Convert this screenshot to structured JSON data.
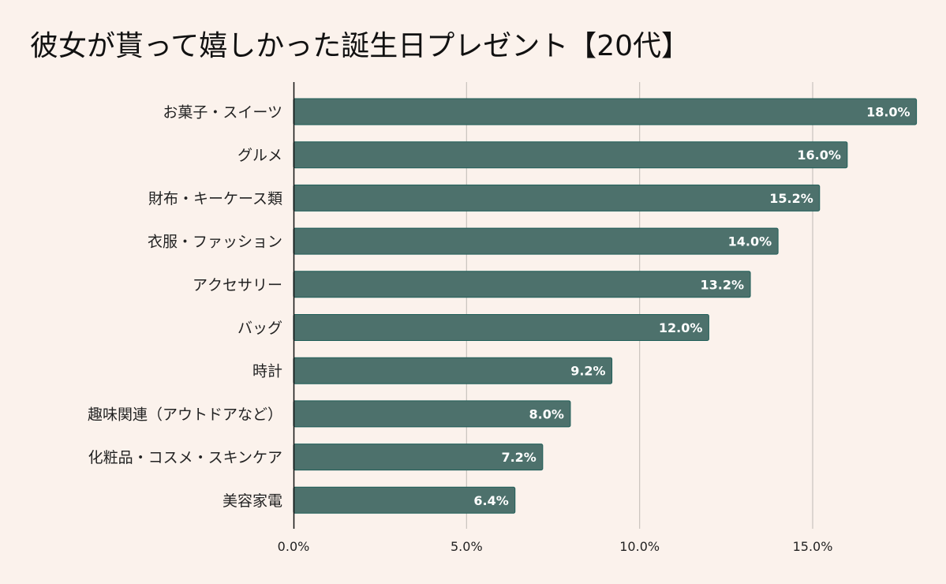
{
  "chart_data": {
    "type": "bar",
    "orientation": "horizontal",
    "title": "彼女が貰って嬉しかった誕生日プレゼント【20代】",
    "categories": [
      "お菓子・スイーツ",
      "グルメ",
      "財布・キーケース類",
      "衣服・ファッション",
      "アクセサリー",
      "バッグ",
      "時計",
      "趣味関連（アウトドアなど）",
      "化粧品・コスメ・スキンケア",
      "美容家電"
    ],
    "values": [
      18.0,
      16.0,
      15.2,
      14.0,
      13.2,
      12.0,
      9.2,
      8.0,
      7.2,
      6.4
    ],
    "data_labels": [
      "18.0%",
      "16.0%",
      "15.2%",
      "14.0%",
      "13.2%",
      "12.0%",
      "9.2%",
      "8.0%",
      "7.2%",
      "6.4%"
    ],
    "x_ticks": [
      0,
      5,
      10,
      15
    ],
    "x_tick_labels": [
      "0.0%",
      "5.0%",
      "10.0%",
      "15.0%"
    ],
    "xlim": [
      0,
      18
    ],
    "grid": "vertical",
    "legend": "none",
    "colors": {
      "bar": "#4d716c",
      "bar_edge": "#1f5e58",
      "background": "#fbf2ec",
      "grid": "#c9c2bd"
    }
  }
}
